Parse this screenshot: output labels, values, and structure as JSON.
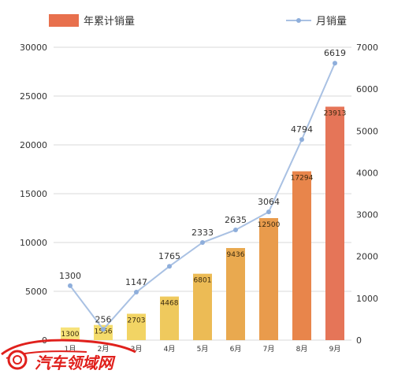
{
  "chart_data": {
    "type": "bar",
    "categories": [
      "1月",
      "2月",
      "3月",
      "4月",
      "5月",
      "6月",
      "7月",
      "8月",
      "9月"
    ],
    "series": [
      {
        "name": "年累计销量",
        "type": "bar",
        "axis": "left",
        "values": [
          1300,
          1556,
          2703,
          4468,
          6801,
          9436,
          12500,
          17294,
          23913
        ],
        "colors": [
          "#f6e27a",
          "#f4dc6c",
          "#f2d464",
          "#efc95d",
          "#ecbb55",
          "#e9a94f",
          "#e99b4c",
          "#e8854b",
          "#e57558"
        ],
        "legend_color": "#e8704d"
      },
      {
        "name": "月销量",
        "type": "line",
        "axis": "right",
        "values": [
          1300,
          256,
          1147,
          1765,
          2333,
          2635,
          3064,
          4794,
          6619
        ],
        "line_color": "#a9c1e3",
        "marker_color": "#8eaedb"
      }
    ],
    "y_left": {
      "range": [
        0,
        30000
      ],
      "ticks": [
        0,
        5000,
        10000,
        15000,
        20000,
        25000,
        30000
      ]
    },
    "y_right": {
      "range": [
        0,
        7000
      ],
      "ticks": [
        0,
        1000,
        2000,
        3000,
        4000,
        5000,
        6000,
        7000
      ]
    },
    "grid": true,
    "legend": "top"
  },
  "watermark": {
    "text": "汽车领域网",
    "color": "#e0201c"
  }
}
